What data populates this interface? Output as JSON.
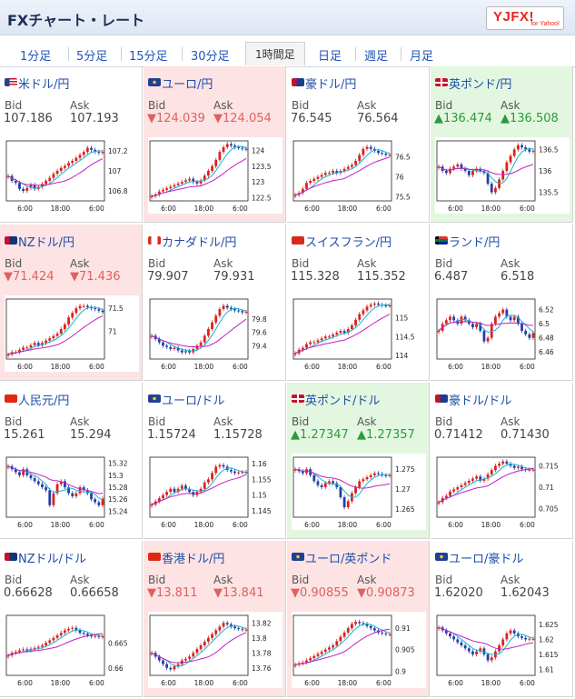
{
  "header": {
    "title": "FXチャート・レート",
    "logo_text": "YJFX!",
    "logo_sub": "for Yahoo!"
  },
  "tabs": [
    "1分足",
    "5分足",
    "15分足",
    "30分足",
    "1時間足",
    "日足",
    "週足",
    "月足"
  ],
  "active_tab": "1時間足",
  "labels": {
    "bid": "Bid",
    "ask": "Ask"
  },
  "colors": {
    "down_bg": "#fde3e3",
    "up_bg": "#e3f7e0",
    "candle_up": "#d9241c",
    "candle_down": "#263fa3",
    "ma_short": "#12b6d8",
    "ma_long": "#c11fc3"
  },
  "x_ticks": [
    "6:00",
    "18:00",
    "6:00"
  ],
  "pairs": [
    {
      "name": "米ドル/円",
      "flag": "us",
      "bid": "107.186",
      "ask": "107.193",
      "state": "flat",
      "y_ticks": [
        "107.2",
        "107",
        "106.8"
      ],
      "ylim": [
        106.7,
        107.3
      ],
      "series": [
        106.95,
        106.9,
        106.88,
        106.82,
        106.8,
        106.83,
        106.86,
        106.82,
        106.84,
        106.87,
        106.9,
        106.93,
        106.97,
        107.0,
        107.03,
        107.05,
        107.08,
        107.1,
        107.13,
        107.16,
        107.19,
        107.23,
        107.21,
        107.19,
        107.18,
        107.19
      ]
    },
    {
      "name": "ユーロ/円",
      "flag": "eu",
      "bid": "124.039",
      "ask": "124.054",
      "state": "down",
      "y_ticks": [
        "124",
        "123.5",
        "123",
        "122.5"
      ],
      "ylim": [
        122.4,
        124.3
      ],
      "series": [
        122.55,
        122.6,
        122.7,
        122.75,
        122.8,
        122.85,
        122.9,
        122.95,
        123.0,
        123.05,
        123.1,
        123.0,
        122.95,
        123.05,
        123.2,
        123.35,
        123.5,
        123.7,
        123.95,
        124.1,
        124.2,
        124.15,
        124.1,
        124.08,
        124.05,
        124.04
      ]
    },
    {
      "name": "豪ドル/円",
      "flag": "au",
      "bid": "76.545",
      "ask": "76.564",
      "state": "flat",
      "y_ticks": [
        "76.5",
        "76",
        "75.5"
      ],
      "ylim": [
        75.4,
        76.9
      ],
      "series": [
        75.55,
        75.6,
        75.7,
        75.85,
        75.9,
        75.95,
        76.0,
        76.05,
        76.1,
        76.1,
        76.15,
        76.1,
        76.15,
        76.2,
        76.25,
        76.3,
        76.4,
        76.55,
        76.7,
        76.75,
        76.7,
        76.65,
        76.6,
        76.58,
        76.55,
        76.55
      ]
    },
    {
      "name": "英ポンド/円",
      "flag": "gb",
      "bid": "136.474",
      "ask": "136.508",
      "state": "up",
      "y_ticks": [
        "136.5",
        "136",
        "135.5"
      ],
      "ylim": [
        135.3,
        136.7
      ],
      "series": [
        136.1,
        136.0,
        135.95,
        136.05,
        136.1,
        136.15,
        136.05,
        136.0,
        135.9,
        136.0,
        136.05,
        136.0,
        135.95,
        135.7,
        135.5,
        135.6,
        135.8,
        136.0,
        136.2,
        136.35,
        136.5,
        136.6,
        136.55,
        136.5,
        136.45,
        136.47
      ]
    },
    {
      "name": "NZドル/円",
      "flag": "nz",
      "bid": "71.424",
      "ask": "71.436",
      "state": "down",
      "y_ticks": [
        "71.5",
        "71"
      ],
      "ylim": [
        70.4,
        71.7
      ],
      "series": [
        70.5,
        70.55,
        70.55,
        70.6,
        70.65,
        70.65,
        70.7,
        70.75,
        70.7,
        70.75,
        70.8,
        70.85,
        70.9,
        70.95,
        71.05,
        71.15,
        71.3,
        71.4,
        71.5,
        71.55,
        71.55,
        71.52,
        71.5,
        71.48,
        71.45,
        71.42
      ]
    },
    {
      "name": "カナダドル/円",
      "flag": "ca",
      "bid": "79.907",
      "ask": "79.931",
      "state": "flat",
      "y_ticks": [
        "79.8",
        "79.6",
        "79.4"
      ],
      "ylim": [
        79.2,
        80.1
      ],
      "series": [
        79.55,
        79.5,
        79.45,
        79.4,
        79.38,
        79.35,
        79.37,
        79.33,
        79.3,
        79.32,
        79.3,
        79.35,
        79.4,
        79.45,
        79.55,
        79.65,
        79.75,
        79.85,
        79.95,
        80.0,
        79.97,
        79.95,
        79.93,
        79.92,
        79.9,
        79.91
      ]
    },
    {
      "name": "スイスフラン/円",
      "flag": "ch",
      "bid": "115.328",
      "ask": "115.352",
      "state": "flat",
      "y_ticks": [
        "115",
        "114.5",
        "114"
      ],
      "ylim": [
        113.9,
        115.5
      ],
      "series": [
        114.05,
        114.15,
        114.2,
        114.3,
        114.35,
        114.35,
        114.4,
        114.45,
        114.5,
        114.5,
        114.55,
        114.6,
        114.65,
        114.6,
        114.7,
        114.8,
        114.95,
        115.1,
        115.2,
        115.3,
        115.35,
        115.38,
        115.35,
        115.33,
        115.32,
        115.33
      ]
    },
    {
      "name": "ランド/円",
      "flag": "za",
      "bid": "6.487",
      "ask": "6.518",
      "state": "flat",
      "y_ticks": [
        "6.52",
        "6.5",
        "6.48",
        "6.46"
      ],
      "ylim": [
        6.45,
        6.535
      ],
      "series": [
        6.49,
        6.5,
        6.505,
        6.51,
        6.505,
        6.5,
        6.51,
        6.505,
        6.5,
        6.495,
        6.5,
        6.49,
        6.475,
        6.48,
        6.5,
        6.51,
        6.515,
        6.52,
        6.51,
        6.505,
        6.51,
        6.5,
        6.49,
        6.485,
        6.48,
        6.487
      ]
    },
    {
      "name": "人民元/円",
      "flag": "cn",
      "bid": "15.261",
      "ask": "15.294",
      "state": "flat",
      "y_ticks": [
        "15.32",
        "15.3",
        "15.28",
        "15.26",
        "15.24"
      ],
      "ylim": [
        15.23,
        15.33
      ],
      "series": [
        15.315,
        15.31,
        15.305,
        15.3,
        15.31,
        15.3,
        15.295,
        15.29,
        15.285,
        15.28,
        15.275,
        15.25,
        15.27,
        15.285,
        15.29,
        15.28,
        15.27,
        15.265,
        15.27,
        15.28,
        15.275,
        15.27,
        15.26,
        15.255,
        15.25,
        15.261
      ]
    },
    {
      "name": "ユーロ/ドル",
      "flag": "eu",
      "bid": "1.15724",
      "ask": "1.15728",
      "state": "flat",
      "y_ticks": [
        "1.16",
        "1.155",
        "1.15",
        "1.145"
      ],
      "ylim": [
        1.143,
        1.162
      ],
      "series": [
        1.147,
        1.148,
        1.149,
        1.15,
        1.151,
        1.152,
        1.151,
        1.152,
        1.153,
        1.152,
        1.151,
        1.15,
        1.151,
        1.152,
        1.154,
        1.155,
        1.157,
        1.159,
        1.1595,
        1.159,
        1.158,
        1.1575,
        1.157,
        1.1572,
        1.1573,
        1.1572
      ]
    },
    {
      "name": "英ポンド/ドル",
      "flag": "gb",
      "bid": "1.27347",
      "ask": "1.27357",
      "state": "up",
      "y_ticks": [
        "1.275",
        "1.27",
        "1.265"
      ],
      "ylim": [
        1.263,
        1.278
      ],
      "series": [
        1.275,
        1.2745,
        1.274,
        1.275,
        1.2735,
        1.272,
        1.271,
        1.2705,
        1.2715,
        1.272,
        1.2715,
        1.2705,
        1.268,
        1.2655,
        1.267,
        1.269,
        1.2705,
        1.272,
        1.2725,
        1.273,
        1.2735,
        1.274,
        1.2738,
        1.2735,
        1.2734,
        1.2735
      ]
    },
    {
      "name": "豪ドル/ドル",
      "flag": "au",
      "bid": "0.71412",
      "ask": "0.71430",
      "state": "flat",
      "y_ticks": [
        "0.715",
        "0.71",
        "0.705"
      ],
      "ylim": [
        0.703,
        0.717
      ],
      "series": [
        0.7065,
        0.7075,
        0.708,
        0.709,
        0.7095,
        0.71,
        0.7105,
        0.711,
        0.7115,
        0.712,
        0.7125,
        0.7115,
        0.712,
        0.713,
        0.714,
        0.715,
        0.7155,
        0.716,
        0.7155,
        0.715,
        0.7145,
        0.7148,
        0.7142,
        0.714,
        0.7141,
        0.7141
      ]
    },
    {
      "name": "NZドル/ドル",
      "flag": "nz",
      "bid": "0.66628",
      "ask": "0.66658",
      "state": "flat",
      "y_ticks": [
        "0.665",
        "0.66"
      ],
      "ylim": [
        0.6585,
        0.6705
      ],
      "series": [
        0.6625,
        0.663,
        0.6632,
        0.6635,
        0.6637,
        0.6635,
        0.6638,
        0.664,
        0.6642,
        0.6645,
        0.665,
        0.6655,
        0.666,
        0.6665,
        0.667,
        0.6675,
        0.6678,
        0.668,
        0.6675,
        0.667,
        0.6668,
        0.6665,
        0.6663,
        0.6664,
        0.6662,
        0.6663
      ]
    },
    {
      "name": "香港ドル/円",
      "flag": "hk",
      "bid": "13.811",
      "ask": "13.841",
      "state": "down",
      "y_ticks": [
        "13.82",
        "13.8",
        "13.78",
        "13.76"
      ],
      "ylim": [
        13.75,
        13.83
      ],
      "series": [
        13.78,
        13.775,
        13.77,
        13.765,
        13.76,
        13.758,
        13.762,
        13.765,
        13.77,
        13.772,
        13.775,
        13.78,
        13.785,
        13.79,
        13.795,
        13.8,
        13.805,
        13.81,
        13.815,
        13.82,
        13.818,
        13.815,
        13.813,
        13.812,
        13.811,
        13.811
      ]
    },
    {
      "name": "ユーロ/英ポンド",
      "flag": "eu",
      "bid": "0.90855",
      "ask": "0.90873",
      "state": "down",
      "y_ticks": [
        "0.91",
        "0.905",
        "0.9"
      ],
      "ylim": [
        0.899,
        0.913
      ],
      "series": [
        0.9015,
        0.9018,
        0.902,
        0.9025,
        0.903,
        0.9035,
        0.904,
        0.9045,
        0.905,
        0.9055,
        0.906,
        0.907,
        0.908,
        0.909,
        0.91,
        0.911,
        0.9115,
        0.9112,
        0.911,
        0.9105,
        0.91,
        0.9095,
        0.909,
        0.9088,
        0.9086,
        0.9086
      ]
    },
    {
      "name": "ユーロ/豪ドル",
      "flag": "eu",
      "bid": "1.62020",
      "ask": "1.62043",
      "state": "flat",
      "y_ticks": [
        "1.625",
        "1.62",
        "1.615",
        "1.61"
      ],
      "ylim": [
        1.608,
        1.628
      ],
      "series": [
        1.624,
        1.623,
        1.622,
        1.621,
        1.62,
        1.619,
        1.618,
        1.617,
        1.616,
        1.615,
        1.616,
        1.617,
        1.615,
        1.613,
        1.614,
        1.616,
        1.618,
        1.62,
        1.622,
        1.623,
        1.622,
        1.621,
        1.6205,
        1.62,
        1.6202,
        1.6202
      ]
    }
  ]
}
